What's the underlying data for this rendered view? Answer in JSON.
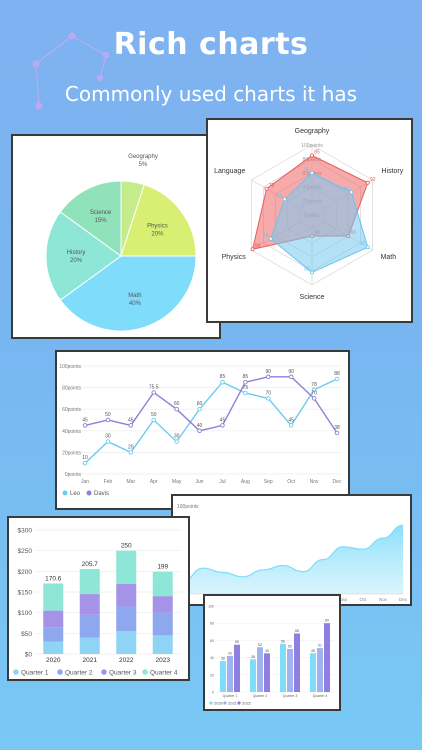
{
  "header": {
    "title": "Rich charts",
    "subtitle": "Commonly used charts it has"
  },
  "colors": {
    "blue": "#7fdcfb",
    "green": "#8fe2b9",
    "yellow": "#d8ef73",
    "teal": "#8ee6d6",
    "purple": "#9b8fe3",
    "red": "#f08080",
    "line_leo": "#6bcbf1",
    "line_davis": "#8e7fd8"
  },
  "chart_data": [
    {
      "type": "pie",
      "slices": [
        {
          "label": "Geography",
          "value": 5,
          "pct": "5%"
        },
        {
          "label": "Physics",
          "value": 20,
          "pct": "20%"
        },
        {
          "label": "Math",
          "value": 40,
          "pct": "40%"
        },
        {
          "label": "History",
          "value": 20,
          "pct": "20%"
        },
        {
          "label": "Science",
          "value": 15,
          "pct": "15%"
        }
      ]
    },
    {
      "type": "radar",
      "axes": [
        "Geography",
        "History",
        "Math",
        "Science",
        "Physics",
        "Language"
      ],
      "rings": [
        "100points",
        "80points",
        "60points",
        "40points",
        "20points",
        "0points"
      ],
      "series": [
        {
          "values": [
            85,
            92,
            60,
            30,
            98,
            75
          ],
          "labels": [
            "85",
            "92",
            "60",
            "30",
            "98",
            "75"
          ]
        },
        {
          "values": [
            60,
            65,
            92,
            82,
            68,
            45
          ],
          "labels": [
            "60",
            "65",
            "92",
            "82",
            "68",
            "45"
          ]
        }
      ],
      "ylim": [
        0,
        100
      ]
    },
    {
      "type": "line",
      "categories": [
        "Jan",
        "Feb",
        "Mar",
        "Apr",
        "May",
        "Jun",
        "Jul",
        "Aug",
        "Sep",
        "Oct",
        "Nov",
        "Dec"
      ],
      "yticks": [
        "0points",
        "20points",
        "40points",
        "60points",
        "80points",
        "100points"
      ],
      "ylim": [
        0,
        100
      ],
      "series": [
        {
          "name": "Leo",
          "values": [
            10,
            30,
            20,
            50,
            30,
            60,
            85,
            75,
            70,
            45,
            78,
            88
          ],
          "labels": [
            "10",
            "30",
            "20",
            "50",
            "30",
            "60",
            "85",
            "75",
            "70",
            "45",
            "78",
            "88"
          ]
        },
        {
          "name": "Davis",
          "values": [
            45,
            50,
            45,
            75.5,
            60,
            40,
            45,
            85,
            90,
            90,
            70,
            38
          ],
          "labels": [
            "45",
            "50",
            "45",
            "75.5",
            "60",
            "40",
            "45",
            "85",
            "90",
            "90",
            "70",
            "38"
          ]
        }
      ]
    },
    {
      "type": "area",
      "ytick": "100points",
      "categories": [
        "Jan",
        "Feb",
        "Mar",
        "Apr",
        "May",
        "Jun",
        "Jul",
        "Aug",
        "Sep",
        "Oct",
        "Nov",
        "Dec"
      ],
      "values": [
        15,
        30,
        25,
        20,
        28,
        33,
        26,
        40,
        55,
        52,
        65,
        80
      ]
    },
    {
      "type": "bar",
      "stacked": true,
      "categories": [
        "2020",
        "2021",
        "2022",
        "2023"
      ],
      "yticks": [
        "$0",
        "$50",
        "$100",
        "$150",
        "$200",
        "$250",
        "$300"
      ],
      "ylim": [
        0,
        300
      ],
      "totals": [
        "170.6",
        "205.7",
        "250",
        "199"
      ],
      "series": [
        {
          "name": "Quarter 1",
          "values": [
            30,
            40,
            55,
            45
          ]
        },
        {
          "name": "Quarter 2",
          "values": [
            35,
            55,
            60,
            55
          ]
        },
        {
          "name": "Quarter 3",
          "values": [
            40,
            50,
            55,
            40
          ]
        },
        {
          "name": "Quarter 4",
          "values": [
            65.6,
            60.7,
            80,
            59
          ]
        }
      ]
    },
    {
      "type": "bar",
      "categories": [
        "Quarter 1",
        "Quarter 2",
        "Quarter 3",
        "Quarter 4"
      ],
      "yticks": [
        "0",
        "20",
        "40",
        "60",
        "80",
        "100"
      ],
      "ylim": [
        0,
        100
      ],
      "series": [
        {
          "name": "2020",
          "values": [
            36,
            38,
            56,
            45
          ],
          "labels": [
            "36",
            "38",
            "56",
            "45"
          ]
        },
        {
          "name": "2021",
          "values": [
            42,
            52,
            50,
            51
          ],
          "labels": [
            "42",
            "52",
            "50",
            "51"
          ]
        },
        {
          "name": "2022",
          "values": [
            55,
            45,
            68,
            80
          ],
          "labels": [
            "55",
            "45",
            "68",
            "80"
          ]
        }
      ]
    }
  ]
}
